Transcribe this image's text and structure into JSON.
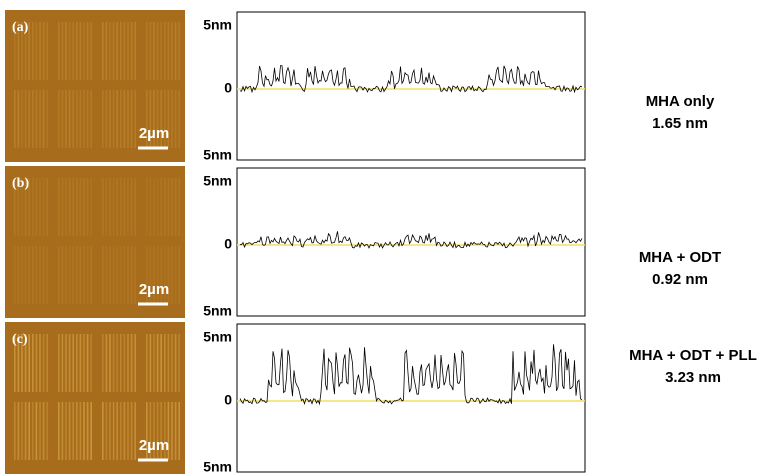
{
  "panels": [
    {
      "label": "(a)",
      "scale_bar": "2µm",
      "axis_top": "5nm",
      "axis_zero": "0",
      "axis_bottom": "5nm",
      "sample": "MHA only",
      "height": "1.65 nm"
    },
    {
      "label": "(b)",
      "scale_bar": "2µm",
      "axis_top": "5nm",
      "axis_zero": "0",
      "axis_bottom": "5nm",
      "sample": "MHA + ODT",
      "height": "0.92 nm"
    },
    {
      "label": "(c)",
      "scale_bar": "2µm",
      "axis_top": "5nm",
      "axis_zero": "0",
      "axis_bottom": "5nm",
      "sample": "MHA + ODT + PLL",
      "height": "3.23 nm"
    }
  ]
}
